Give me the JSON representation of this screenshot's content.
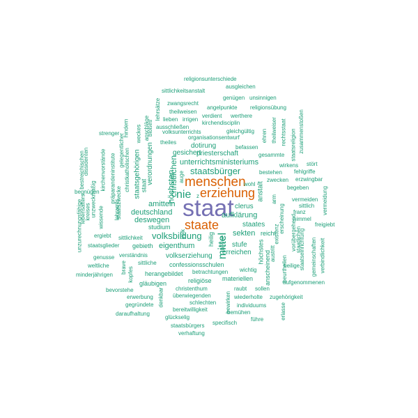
{
  "colors": {
    "primary": "#7570b3",
    "secondary": "#d95f02",
    "tertiary": "#1b9e77",
    "background": "#ffffff"
  },
  "words": [
    {
      "text": "staat",
      "weight": 100,
      "color": "primary",
      "vertical": false
    },
    {
      "text": "menschen",
      "weight": 52,
      "color": "secondary",
      "vertical": false
    },
    {
      "text": "erziehung",
      "weight": 52,
      "color": "secondary",
      "vertical": false
    },
    {
      "text": "staate",
      "weight": 48,
      "color": "secondary",
      "vertical": false
    },
    {
      "text": "nie",
      "weight": 42,
      "color": "tertiary",
      "vertical": false
    },
    {
      "text": "mittel",
      "weight": 42,
      "color": "tertiary",
      "vertical": true
    },
    {
      "text": "staatsbürger",
      "weight": 34,
      "color": "tertiary",
      "vertical": false
    },
    {
      "text": "volksbildung",
      "weight": 34,
      "color": "tertiary",
      "vertical": false
    },
    {
      "text": "höchsten",
      "weight": 30,
      "color": "tertiary",
      "vertical": true
    },
    {
      "text": "christlichen",
      "weight": 28,
      "color": "tertiary",
      "vertical": true
    },
    {
      "text": "unterrichtsministeriums",
      "weight": 28,
      "color": "tertiary",
      "vertical": false
    },
    {
      "text": "deutschland",
      "weight": 28,
      "color": "tertiary",
      "vertical": false
    },
    {
      "text": "aufklärung",
      "weight": 28,
      "color": "tertiary",
      "vertical": false
    },
    {
      "text": "sekten",
      "weight": 28,
      "color": "tertiary",
      "vertical": false
    },
    {
      "text": "amitteln",
      "weight": 26,
      "color": "tertiary",
      "vertical": false
    },
    {
      "text": "deswegen",
      "weight": 26,
      "color": "tertiary",
      "vertical": false
    },
    {
      "text": "eigenthum",
      "weight": 26,
      "color": "tertiary",
      "vertical": false
    },
    {
      "text": "volkserziehung",
      "weight": 24,
      "color": "tertiary",
      "vertical": false
    },
    {
      "text": "verordnungen",
      "weight": 24,
      "color": "tertiary",
      "vertical": true
    },
    {
      "text": "priesterschaft",
      "weight": 22,
      "color": "tertiary",
      "vertical": false
    },
    {
      "text": "staatsgehörigen",
      "weight": 22,
      "color": "tertiary",
      "vertical": true
    },
    {
      "text": "anstalt",
      "weight": 22,
      "color": "tertiary",
      "vertical": true
    },
    {
      "text": "clerus",
      "weight": 20,
      "color": "tertiary",
      "vertical": false
    },
    {
      "text": "staates",
      "weight": 20,
      "color": "tertiary",
      "vertical": false
    },
    {
      "text": "stufe",
      "weight": 20,
      "color": "tertiary",
      "vertical": false
    },
    {
      "text": "erreichen",
      "weight": 20,
      "color": "tertiary",
      "vertical": false
    },
    {
      "text": "dotirung",
      "weight": 20,
      "color": "tertiary",
      "vertical": false
    },
    {
      "text": "gesichert",
      "weight": 20,
      "color": "tertiary",
      "vertical": false
    },
    {
      "text": "studium",
      "weight": 18,
      "color": "tertiary",
      "vertical": false
    },
    {
      "text": "confessionsschulen",
      "weight": 18,
      "color": "tertiary",
      "vertical": false
    },
    {
      "text": "herangebildet",
      "weight": 18,
      "color": "tertiary",
      "vertical": false
    },
    {
      "text": "gläubigen",
      "weight": 18,
      "color": "tertiary",
      "vertical": false
    },
    {
      "text": "religiöse",
      "weight": 18,
      "color": "tertiary",
      "vertical": false
    },
    {
      "text": "materiellen",
      "weight": 18,
      "color": "tertiary",
      "vertical": false
    },
    {
      "text": "gebieth",
      "weight": 18,
      "color": "tertiary",
      "vertical": false
    },
    {
      "text": "staat",
      "weight": 18,
      "color": "tertiary",
      "vertical": true
    },
    {
      "text": "heilig",
      "weight": 18,
      "color": "tertiary",
      "vertical": true
    },
    {
      "text": "reicht",
      "weight": 18,
      "color": "tertiary",
      "vertical": false
    },
    {
      "text": "höchstes",
      "weight": 18,
      "color": "tertiary",
      "vertical": true
    },
    {
      "text": "anscheinend",
      "weight": 18,
      "color": "tertiary",
      "vertical": true
    },
    {
      "text": "wichtig",
      "weight": 16,
      "color": "tertiary",
      "vertical": false
    },
    {
      "text": "organisationsentwurf",
      "weight": 16,
      "color": "tertiary",
      "vertical": false
    },
    {
      "text": "befassen",
      "weight": 16,
      "color": "tertiary",
      "vertical": false
    },
    {
      "text": "bestehen",
      "weight": 16,
      "color": "tertiary",
      "vertical": false
    },
    {
      "text": "zwecken",
      "weight": 16,
      "color": "tertiary",
      "vertical": false
    },
    {
      "text": "fehlgriffe",
      "weight": 16,
      "color": "tertiary",
      "vertical": false
    },
    {
      "text": "begeben",
      "weight": 16,
      "color": "tertiary",
      "vertical": false
    },
    {
      "text": "vermeiden",
      "weight": 16,
      "color": "tertiary",
      "vertical": false
    },
    {
      "text": "sittlich",
      "weight": 16,
      "color": "tertiary",
      "vertical": false
    },
    {
      "text": "franz",
      "weight": 16,
      "color": "tertiary",
      "vertical": false
    },
    {
      "text": "himmel",
      "weight": 16,
      "color": "tertiary",
      "vertical": false
    },
    {
      "text": "freigiebt",
      "weight": 16,
      "color": "tertiary",
      "vertical": false
    },
    {
      "text": "heilige",
      "weight": 16,
      "color": "tertiary",
      "vertical": false
    },
    {
      "text": "aufgenommenen",
      "weight": 16,
      "color": "tertiary",
      "vertical": false
    },
    {
      "text": "staatseinrichtung",
      "weight": 16,
      "color": "tertiary",
      "vertical": true
    },
    {
      "text": "gemeinschaften",
      "weight": 16,
      "color": "tertiary",
      "vertical": true
    },
    {
      "text": "verbindlichkeit",
      "weight": 16,
      "color": "tertiary",
      "vertical": true
    },
    {
      "text": "vermeidung",
      "weight": 16,
      "color": "tertiary",
      "vertical": true
    },
    {
      "text": "erzwingbar",
      "weight": 16,
      "color": "tertiary",
      "vertical": false
    },
    {
      "text": "stört",
      "weight": 16,
      "color": "tertiary",
      "vertical": false
    },
    {
      "text": "wirkens",
      "weight": 16,
      "color": "tertiary",
      "vertical": false
    },
    {
      "text": "gesammte",
      "weight": 16,
      "color": "tertiary",
      "vertical": false
    },
    {
      "text": "staatsreligion",
      "weight": 16,
      "color": "tertiary",
      "vertical": true
    },
    {
      "text": "rechtsstaat",
      "weight": 16,
      "color": "tertiary",
      "vertical": true
    },
    {
      "text": "zusammenstoßen",
      "weight": 16,
      "color": "tertiary",
      "vertical": true
    },
    {
      "text": "theilweiser",
      "weight": 16,
      "color": "tertiary",
      "vertical": true
    },
    {
      "text": "ehren",
      "weight": 16,
      "color": "tertiary",
      "vertical": true
    },
    {
      "text": "gleichgültig",
      "weight": 16,
      "color": "tertiary",
      "vertical": false
    },
    {
      "text": "kirchendisciplin",
      "weight": 16,
      "color": "tertiary",
      "vertical": false
    },
    {
      "text": "werthere",
      "weight": 16,
      "color": "tertiary",
      "vertical": false
    },
    {
      "text": "verdient",
      "weight": 16,
      "color": "tertiary",
      "vertical": false
    },
    {
      "text": "angelpunkte",
      "weight": 16,
      "color": "tertiary",
      "vertical": false
    },
    {
      "text": "religionsübung",
      "weight": 16,
      "color": "tertiary",
      "vertical": false
    },
    {
      "text": "genügen",
      "weight": 16,
      "color": "tertiary",
      "vertical": false
    },
    {
      "text": "unsinnigen",
      "weight": 16,
      "color": "tertiary",
      "vertical": false
    },
    {
      "text": "ausgleichen",
      "weight": 16,
      "color": "tertiary",
      "vertical": false
    },
    {
      "text": "sittlichkeitsanstalt",
      "weight": 16,
      "color": "tertiary",
      "vertical": false
    },
    {
      "text": "religionsunterschiede",
      "weight": 16,
      "color": "tertiary",
      "vertical": false
    },
    {
      "text": "zwangsrecht",
      "weight": 16,
      "color": "tertiary",
      "vertical": false
    },
    {
      "text": "theilweisen",
      "weight": 16,
      "color": "tertiary",
      "vertical": false
    },
    {
      "text": "lieben",
      "weight": 16,
      "color": "tertiary",
      "vertical": false
    },
    {
      "text": "irrigen",
      "weight": 16,
      "color": "tertiary",
      "vertical": false
    },
    {
      "text": "ausschließen",
      "weight": 16,
      "color": "tertiary",
      "vertical": false
    },
    {
      "text": "volksunterrichts",
      "weight": 16,
      "color": "tertiary",
      "vertical": false
    },
    {
      "text": "lehrsätze",
      "weight": 16,
      "color": "tertiary",
      "vertical": true
    },
    {
      "text": "bloßes",
      "weight": 16,
      "color": "tertiary",
      "vertical": true
    },
    {
      "text": "anschläge",
      "weight": 16,
      "color": "tertiary",
      "vertical": true
    },
    {
      "text": "weckes",
      "weight": 16,
      "color": "tertiary",
      "vertical": true
    },
    {
      "text": "hindern",
      "weight": 16,
      "color": "tertiary",
      "vertical": true
    },
    {
      "text": "theiles",
      "weight": 16,
      "color": "tertiary",
      "vertical": false
    },
    {
      "text": "strenger",
      "weight": 16,
      "color": "tertiary",
      "vertical": false
    },
    {
      "text": "gelegentlicher",
      "weight": 16,
      "color": "tertiary",
      "vertical": true
    },
    {
      "text": "christkatholischen",
      "weight": 16,
      "color": "tertiary",
      "vertical": true
    },
    {
      "text": "staatszwecke",
      "weight": 16,
      "color": "tertiary",
      "vertical": true
    },
    {
      "text": "lehramts",
      "weight": 16,
      "color": "tertiary",
      "vertical": true
    },
    {
      "text": "präparandeninstitute",
      "weight": 16,
      "color": "tertiary",
      "vertical": true
    },
    {
      "text": "unzweckmäßig",
      "weight": 16,
      "color": "tertiary",
      "vertical": true
    },
    {
      "text": "dissidenten",
      "weight": 16,
      "color": "tertiary",
      "vertical": true
    },
    {
      "text": "kirchenvorstände",
      "weight": 16,
      "color": "tertiary",
      "vertical": true
    },
    {
      "text": "wissende",
      "weight": 16,
      "color": "tertiary",
      "vertical": true
    },
    {
      "text": "kreises",
      "weight": 16,
      "color": "tertiary",
      "vertical": true
    },
    {
      "text": "unzurechnungsfähige",
      "weight": 16,
      "color": "tertiary",
      "vertical": true
    },
    {
      "text": "lebensalters",
      "weight": 16,
      "color": "tertiary",
      "vertical": true
    },
    {
      "text": "bestreichischen",
      "weight": 16,
      "color": "tertiary",
      "vertical": true
    },
    {
      "text": "begnügen",
      "weight": 16,
      "color": "tertiary",
      "vertical": false
    },
    {
      "text": "ergiebt",
      "weight": 16,
      "color": "tertiary",
      "vertical": false
    },
    {
      "text": "staatsglieder",
      "weight": 16,
      "color": "tertiary",
      "vertical": false
    },
    {
      "text": "sittlichkeit",
      "weight": 16,
      "color": "tertiary",
      "vertical": false
    },
    {
      "text": "verständnis",
      "weight": 16,
      "color": "tertiary",
      "vertical": false
    },
    {
      "text": "genusse",
      "weight": 16,
      "color": "tertiary",
      "vertical": false
    },
    {
      "text": "sittliche",
      "weight": 16,
      "color": "tertiary",
      "vertical": false
    },
    {
      "text": "weltliche",
      "weight": 16,
      "color": "tertiary",
      "vertical": false
    },
    {
      "text": "minderjährigen",
      "weight": 16,
      "color": "tertiary",
      "vertical": false
    },
    {
      "text": "brave",
      "weight": 16,
      "color": "tertiary",
      "vertical": true
    },
    {
      "text": "kopfes",
      "weight": 16,
      "color": "tertiary",
      "vertical": true
    },
    {
      "text": "bevorstehe",
      "weight": 16,
      "color": "tertiary",
      "vertical": false
    },
    {
      "text": "erwerbung",
      "weight": 16,
      "color": "tertiary",
      "vertical": false
    },
    {
      "text": "gegründete",
      "weight": 16,
      "color": "tertiary",
      "vertical": false
    },
    {
      "text": "daraufhaltung",
      "weight": 16,
      "color": "tertiary",
      "vertical": false
    },
    {
      "text": "denkbar",
      "weight": 16,
      "color": "tertiary",
      "vertical": true
    },
    {
      "text": "christenthum",
      "weight": 16,
      "color": "tertiary",
      "vertical": false
    },
    {
      "text": "überwiegenden",
      "weight": 16,
      "color": "tertiary",
      "vertical": false
    },
    {
      "text": "schlechten",
      "weight": 16,
      "color": "tertiary",
      "vertical": false
    },
    {
      "text": "bereitwilligkeit",
      "weight": 16,
      "color": "tertiary",
      "vertical": false
    },
    {
      "text": "glückselig",
      "weight": 16,
      "color": "tertiary",
      "vertical": false
    },
    {
      "text": "staatsbürgers",
      "weight": 16,
      "color": "tertiary",
      "vertical": false
    },
    {
      "text": "verhaftung",
      "weight": 16,
      "color": "tertiary",
      "vertical": false
    },
    {
      "text": "specifisch",
      "weight": 16,
      "color": "tertiary",
      "vertical": false
    },
    {
      "text": "führe",
      "weight": 16,
      "color": "tertiary",
      "vertical": false
    },
    {
      "text": "bemühen",
      "weight": 16,
      "color": "tertiary",
      "vertical": false
    },
    {
      "text": "individuums",
      "weight": 16,
      "color": "tertiary",
      "vertical": false
    },
    {
      "text": "wiederholte",
      "weight": 16,
      "color": "tertiary",
      "vertical": false
    },
    {
      "text": "zugehörigkeit",
      "weight": 16,
      "color": "tertiary",
      "vertical": false
    },
    {
      "text": "bewirken",
      "weight": 16,
      "color": "tertiary",
      "vertical": true
    },
    {
      "text": "raubt",
      "weight": 16,
      "color": "tertiary",
      "vertical": false
    },
    {
      "text": "sollen",
      "weight": 16,
      "color": "tertiary",
      "vertical": false
    },
    {
      "text": "betrachtungen",
      "weight": 16,
      "color": "tertiary",
      "vertical": false
    },
    {
      "text": "erlasse",
      "weight": 16,
      "color": "tertiary",
      "vertical": true
    },
    {
      "text": "beurtheilen",
      "weight": 16,
      "color": "tertiary",
      "vertical": true
    },
    {
      "text": "austritt",
      "weight": 16,
      "color": "tertiary",
      "vertical": true
    },
    {
      "text": "staatlichen",
      "weight": 16,
      "color": "tertiary",
      "vertical": true
    },
    {
      "text": "vorübergehend",
      "weight": 16,
      "color": "tertiary",
      "vertical": true
    },
    {
      "text": "erscheinung",
      "weight": 16,
      "color": "tertiary",
      "vertical": true
    },
    {
      "text": "existenz",
      "weight": 16,
      "color": "tertiary",
      "vertical": true
    },
    {
      "text": "arm",
      "weight": 16,
      "color": "tertiary",
      "vertical": true
    },
    {
      "text": "bevor",
      "weight": 16,
      "color": "tertiary",
      "vertical": true
    },
    {
      "text": "volk",
      "weight": 16,
      "color": "tertiary",
      "vertical": true
    },
    {
      "text": "wohl",
      "weight": 16,
      "color": "tertiary",
      "vertical": false
    },
    {
      "text": "z",
      "weight": 16,
      "color": "tertiary",
      "vertical": false
    },
    {
      "text": "auge",
      "weight": 16,
      "color": "tertiary",
      "vertical": true
    }
  ]
}
